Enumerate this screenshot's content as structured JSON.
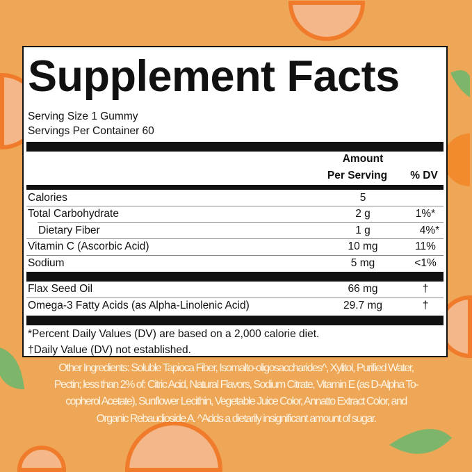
{
  "colors": {
    "background": "#eea657",
    "panel": "#ffffff",
    "ink": "#111111",
    "ingredients_text": "#fff4e2",
    "fruit": "#f07b2a"
  },
  "title": "Supplement Facts",
  "serving_size": "Serving Size 1 Gummy",
  "servings_per_container": "Servings Per Container 60",
  "header": {
    "amount_line1": "Amount",
    "amount_line2": "Per Serving",
    "dv": "% DV"
  },
  "rows": [
    {
      "label": "Calories",
      "amount": "5",
      "dv": ""
    },
    {
      "label": "Total Carbohydrate",
      "amount": "2 g",
      "dv": "1%*"
    },
    {
      "label": "Dietary Fiber",
      "amount": "1 g",
      "dv": "4%*"
    },
    {
      "label": "Vitamin C (Ascorbic Acid)",
      "amount": "10 mg",
      "dv": "11%"
    },
    {
      "label": "Sodium",
      "amount": "5 mg",
      "dv": "<1%"
    }
  ],
  "rows2": [
    {
      "label": "Flax Seed Oil",
      "amount": "66 mg",
      "dv": "†"
    },
    {
      "label": "Omega-3 Fatty Acids (as Alpha-Linolenic Acid)",
      "amount": "29.7 mg",
      "dv": "†"
    }
  ],
  "footnotes": [
    "*Percent Daily Values (DV) are based on a 2,000 calorie diet.",
    "†Daily Value (DV) not established."
  ],
  "other_ingredients": [
    "Other Ingredients: Soluble Tapioca Fiber, Isomalto-oligosaccharides^, Xylitol, Purified Water,",
    "Pectin; less than 2% of: Citric Acid, Natural Flavors, Sodium Citrate, Vitamin E (as D-Alpha To-",
    "copherol Acetate), Sunflower Lecithin, Vegetable Juice Color, Annatto Extract Color, and",
    "Organic Rebaudioside A. ^Adds a dietarily insignificant amount of sugar."
  ]
}
